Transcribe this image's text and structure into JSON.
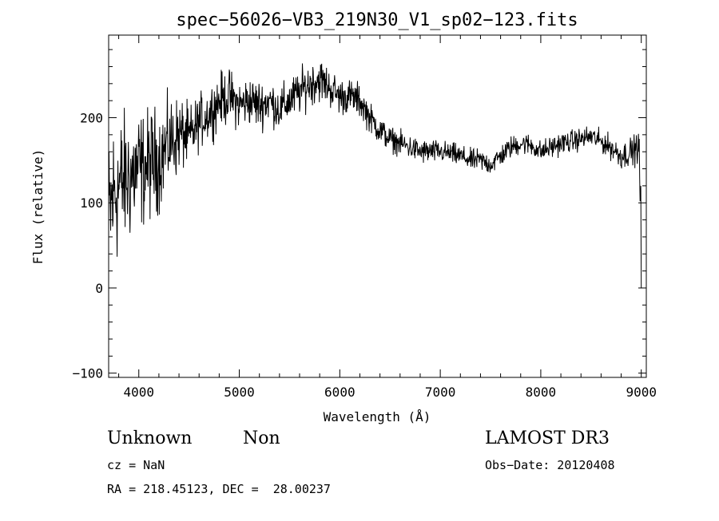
{
  "chart_data": {
    "type": "line",
    "title": "spec−56026−VB3_219N30_V1_sp02−123.fits",
    "xlabel": "Wavelength (Å)",
    "ylabel": "Flux (relative)",
    "xlim": [
      3700,
      9050
    ],
    "ylim": [
      -105,
      297
    ],
    "xticks": [
      4000,
      5000,
      6000,
      7000,
      8000,
      9000
    ],
    "xtick_labels": [
      "4000",
      "5000",
      "6000",
      "7000",
      "8000",
      "9000"
    ],
    "yticks": [
      -100,
      0,
      100,
      200
    ],
    "ytick_labels": [
      "−100",
      "0",
      "100",
      "200"
    ],
    "series": [
      {
        "name": "flux",
        "x": [
          3700,
          3750,
          3800,
          3850,
          3900,
          3950,
          4000,
          4050,
          4100,
          4150,
          4200,
          4250,
          4300,
          4350,
          4400,
          4450,
          4500,
          4600,
          4700,
          4800,
          4900,
          5000,
          5100,
          5200,
          5300,
          5400,
          5500,
          5600,
          5700,
          5800,
          5900,
          6000,
          6100,
          6200,
          6300,
          6400,
          6500,
          6600,
          6700,
          6800,
          6900,
          7000,
          7100,
          7200,
          7300,
          7400,
          7500,
          7600,
          7700,
          7800,
          7900,
          8000,
          8100,
          8200,
          8300,
          8400,
          8500,
          8600,
          8700,
          8800,
          8900,
          8980,
          9000
        ],
        "y": [
          80,
          110,
          120,
          125,
          130,
          135,
          140,
          140,
          145,
          148,
          150,
          160,
          170,
          175,
          180,
          180,
          175,
          195,
          205,
          220,
          225,
          215,
          220,
          215,
          220,
          210,
          220,
          230,
          240,
          245,
          235,
          225,
          225,
          220,
          200,
          185,
          175,
          170,
          165,
          160,
          160,
          160,
          158,
          155,
          150,
          150,
          145,
          155,
          165,
          170,
          168,
          160,
          165,
          170,
          172,
          175,
          178,
          172,
          165,
          155,
          160,
          165,
          0
        ],
        "noise": [
          65,
          65,
          60,
          55,
          55,
          50,
          50,
          45,
          45,
          45,
          40,
          40,
          35,
          35,
          30,
          28,
          26,
          22,
          22,
          22,
          22,
          20,
          20,
          20,
          18,
          18,
          18,
          18,
          18,
          18,
          16,
          15,
          14,
          14,
          12,
          12,
          10,
          10,
          10,
          10,
          10,
          9,
          9,
          9,
          9,
          9,
          9,
          9,
          9,
          9,
          9,
          9,
          9,
          9,
          9,
          9,
          9,
          9,
          10,
          11,
          12,
          12,
          0
        ]
      }
    ]
  },
  "info": {
    "class": "Unknown",
    "subclass": "Non",
    "survey": "LAMOST DR3",
    "cz": "cz = NaN",
    "obs_date": "Obs−Date: 20120408",
    "coords": "RA = 218.45123, DEC =  28.00237"
  }
}
